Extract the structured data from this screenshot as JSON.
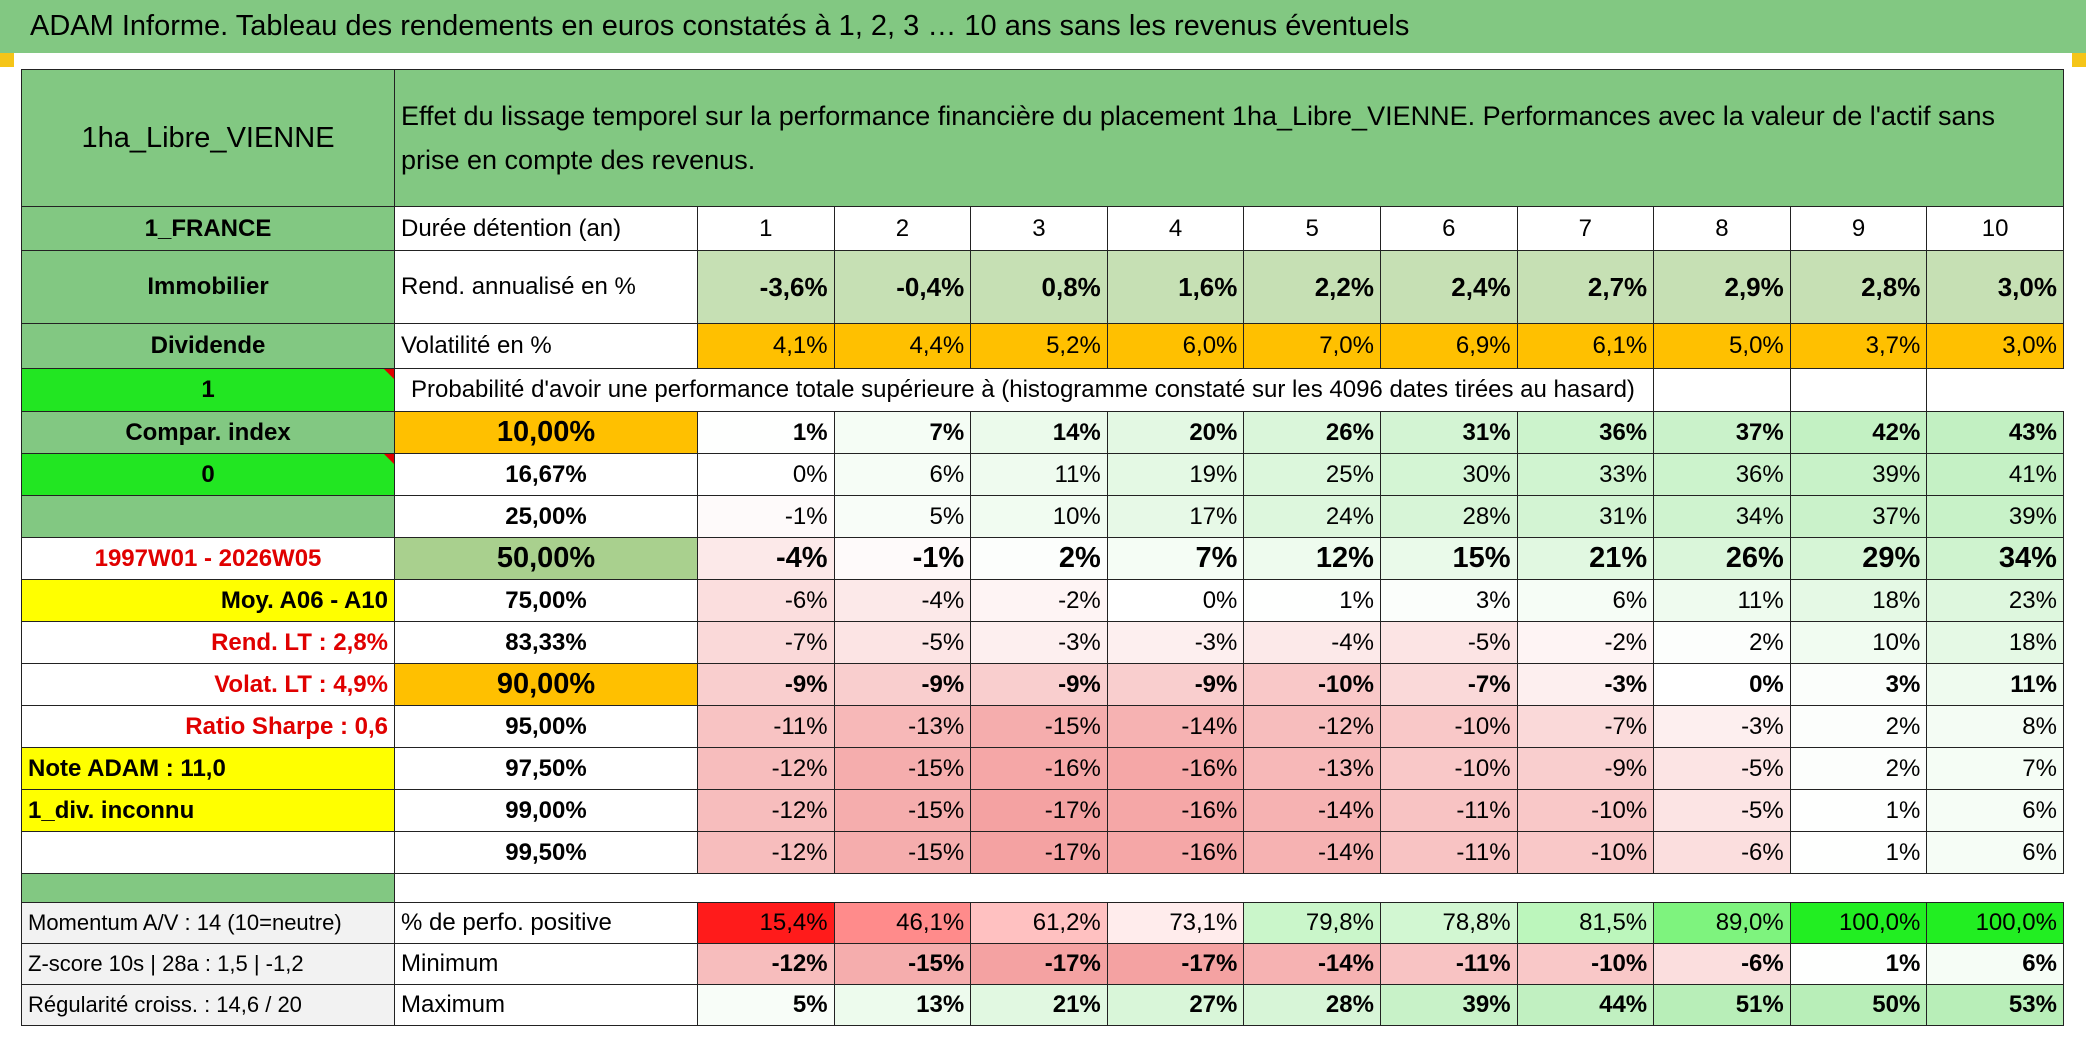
{
  "header": {
    "title": "ADAM Informe. Tableau des rendements en euros constatés à 1, 2, 3 … 10 ans sans les revenus éventuels"
  },
  "table": {
    "name": "1ha_Libre_VIENNE",
    "description": "Effet du lissage temporel sur la performance financière du placement 1ha_Libre_VIENNE. Performances avec la valeur de l'actif sans prise en compte des revenus.",
    "country": "1_FRANCE",
    "duration_label": "Durée détention (an)",
    "durations": [
      1,
      2,
      3,
      4,
      5,
      6,
      7,
      8,
      9,
      10
    ],
    "asset": "Immobilier",
    "return_label": "Rend. annualisé en %",
    "returns": [
      "-3,6%",
      "-0,4%",
      "0,8%",
      "1,6%",
      "2,2%",
      "2,4%",
      "2,7%",
      "2,9%",
      "2,8%",
      "3,0%"
    ],
    "dividend": "Dividende",
    "volatility_label": "Volatilité en %",
    "volatility": [
      "4,1%",
      "4,4%",
      "5,2%",
      "6,0%",
      "7,0%",
      "6,9%",
      "6,1%",
      "5,0%",
      "3,7%",
      "3,0%"
    ],
    "flag": "1",
    "probability_label": "Probabilité d'avoir une performance totale supérieure à (histogramme constaté sur les 4096 dates tirées au hasard)",
    "percentile_rows": [
      {
        "left": "Compar. index",
        "p": "10,00%",
        "values": [
          "1%",
          "7%",
          "14%",
          "20%",
          "26%",
          "31%",
          "36%",
          "37%",
          "42%",
          "43%"
        ]
      },
      {
        "left": "0",
        "p": "16,67%",
        "values": [
          "0%",
          "6%",
          "11%",
          "19%",
          "25%",
          "30%",
          "33%",
          "36%",
          "39%",
          "41%"
        ]
      },
      {
        "p": "25,00%",
        "values": [
          "-1%",
          "5%",
          "10%",
          "17%",
          "24%",
          "28%",
          "31%",
          "34%",
          "37%",
          "39%"
        ]
      },
      {
        "left": "1997W01 - 2026W05",
        "p": "50,00%",
        "values": [
          "-4%",
          "-1%",
          "2%",
          "7%",
          "12%",
          "15%",
          "21%",
          "26%",
          "29%",
          "34%"
        ]
      },
      {
        "left": "Moy. A06 - A10",
        "p": "75,00%",
        "values": [
          "-6%",
          "-4%",
          "-2%",
          "0%",
          "1%",
          "3%",
          "6%",
          "11%",
          "18%",
          "23%"
        ]
      },
      {
        "left": "Rend. LT :   2,8%",
        "p": "83,33%",
        "values": [
          "-7%",
          "-5%",
          "-3%",
          "-3%",
          "-4%",
          "-5%",
          "-2%",
          "2%",
          "10%",
          "18%"
        ]
      },
      {
        "left": "Volat. LT :   4,9%",
        "p": "90,00%",
        "values": [
          "-9%",
          "-9%",
          "-9%",
          "-9%",
          "-10%",
          "-7%",
          "-3%",
          "0%",
          "3%",
          "11%"
        ]
      },
      {
        "left": "Ratio Sharpe :    0,6",
        "p": "95,00%",
        "values": [
          "-11%",
          "-13%",
          "-15%",
          "-14%",
          "-12%",
          "-10%",
          "-7%",
          "-3%",
          "2%",
          "8%"
        ]
      },
      {
        "left": "Note ADAM : 11,0",
        "p": "97,50%",
        "values": [
          "-12%",
          "-15%",
          "-16%",
          "-16%",
          "-13%",
          "-10%",
          "-9%",
          "-5%",
          "2%",
          "7%"
        ]
      },
      {
        "left": "1_div. inconnu",
        "p": "99,00%",
        "values": [
          "-12%",
          "-15%",
          "-17%",
          "-16%",
          "-14%",
          "-11%",
          "-10%",
          "-5%",
          "1%",
          "6%"
        ]
      },
      {
        "p": "99,50%",
        "values": [
          "-12%",
          "-15%",
          "-17%",
          "-16%",
          "-14%",
          "-11%",
          "-10%",
          "-6%",
          "1%",
          "6%"
        ]
      }
    ],
    "summary_rows": [
      {
        "left": "Momentum A/V : 14 (10=neutre)",
        "label": "% de perfo. positive",
        "values": [
          "15,4%",
          "46,1%",
          "61,2%",
          "73,1%",
          "79,8%",
          "78,8%",
          "81,5%",
          "89,0%",
          "100,0%",
          "100,0%"
        ]
      },
      {
        "left": "Z-score 10s | 28a : 1,5 | -1,2",
        "label": "Minimum",
        "values": [
          "-12%",
          "-15%",
          "-17%",
          "-17%",
          "-14%",
          "-11%",
          "-10%",
          "-6%",
          "1%",
          "6%"
        ]
      },
      {
        "left": "Régularité croiss. : 14,6 / 20",
        "label": "Maximum",
        "values": [
          "5%",
          "13%",
          "21%",
          "27%",
          "28%",
          "39%",
          "44%",
          "51%",
          "50%",
          "53%"
        ]
      }
    ]
  }
}
